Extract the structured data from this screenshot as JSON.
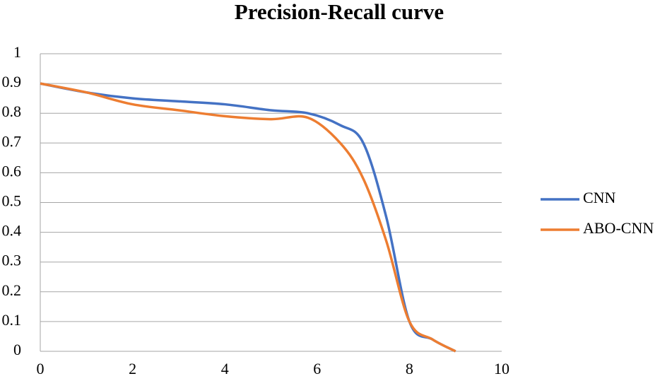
{
  "chart_data": {
    "type": "line",
    "title": "Precision-Recall curve",
    "xlim": [
      0,
      10
    ],
    "xticks": [
      0,
      2,
      4,
      6,
      8,
      10
    ],
    "ylim": [
      0,
      1
    ],
    "yticks": [
      0,
      0.1,
      0.2,
      0.3,
      0.4,
      0.5,
      0.6,
      0.7,
      0.8,
      0.9,
      1
    ],
    "grid": true,
    "legend": "right",
    "series": [
      {
        "name": "CNN",
        "color": "#4472c4",
        "x": [
          0,
          1,
          2,
          3,
          4,
          5,
          5.8,
          6.5,
          7,
          7.5,
          8,
          8.5,
          9
        ],
        "values": [
          0.9,
          0.87,
          0.85,
          0.84,
          0.83,
          0.81,
          0.8,
          0.76,
          0.7,
          0.45,
          0.1,
          0.04,
          0
        ]
      },
      {
        "name": "ABO-CNN",
        "color": "#ed7d31",
        "x": [
          0,
          1,
          2,
          3,
          4,
          5,
          5.8,
          6.5,
          7,
          7.5,
          8,
          8.5,
          9
        ],
        "values": [
          0.9,
          0.87,
          0.83,
          0.81,
          0.79,
          0.78,
          0.785,
          0.7,
          0.58,
          0.37,
          0.1,
          0.04,
          0
        ]
      }
    ]
  }
}
